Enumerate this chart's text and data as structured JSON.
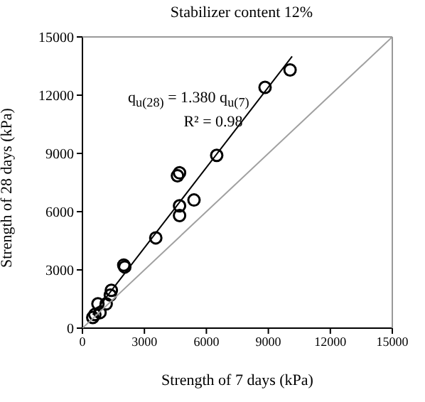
{
  "chart_data": {
    "type": "scatter",
    "title": "Stabilizer content 12%",
    "xlabel": "Strength of 7 days (kPa)",
    "ylabel": "Strength of 28 days (kPa)",
    "annotations": [
      "q$_{u(28)}$ = 1.380 q$_{u(7)}$",
      "R² = 0.98"
    ],
    "series": [
      {
        "color": "#000000",
        "marker": "circle",
        "x": [
          10050,
          8840,
          6500,
          4600,
          4700,
          4700,
          4700,
          5400,
          3550,
          2000,
          2050,
          1400,
          1350,
          1150,
          750,
          850,
          600,
          500
        ],
        "values": [
          13300,
          12400,
          8900,
          7850,
          8000,
          6300,
          5800,
          6600,
          4650,
          3250,
          3150,
          1950,
          1700,
          1250,
          1250,
          800,
          700,
          550
        ]
      },
      {
        "type": "line",
        "color": "#000000",
        "marker": "none",
        "x": [
          500,
          10150
        ],
        "values": [
          690,
          14000
        ]
      },
      {
        "type": "line",
        "color": "#a0a0a0",
        "marker": "none",
        "x": [
          0,
          15000
        ],
        "values": [
          0,
          15000
        ]
      }
    ],
    "xlim": [
      0,
      15000
    ],
    "ylim": [
      0,
      15000
    ],
    "xticks": [
      0,
      3000,
      6000,
      9000,
      12000,
      15000
    ],
    "yticks": [
      0,
      3000,
      6000,
      9000,
      12000,
      15000
    ],
    "grid": false,
    "legend": false
  }
}
